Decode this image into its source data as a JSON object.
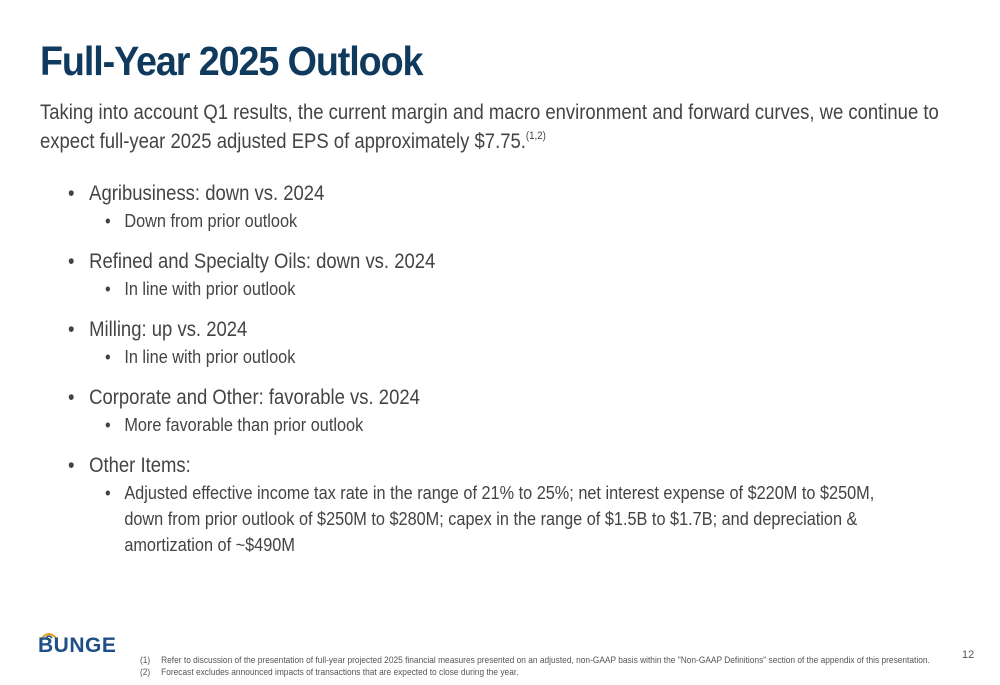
{
  "slide": {
    "title": "Full-Year 2025 Outlook",
    "subtitle": "Taking into account Q1 results, the current margin and macro environment and forward curves, we continue to expect full-year 2025 adjusted EPS of approximately $7.75.",
    "subtitle_sup": "(1,2)",
    "bullets": [
      {
        "text": "Agribusiness: down vs. 2024",
        "sub": "Down from prior outlook"
      },
      {
        "text": "Refined and Specialty Oils: down vs. 2024",
        "sub": "In line with prior outlook"
      },
      {
        "text": "Milling: up vs. 2024",
        "sub": "In line with prior outlook"
      },
      {
        "text": "Corporate and Other: favorable vs. 2024",
        "sub": "More favorable than prior outlook"
      },
      {
        "text": "Other Items:",
        "sub": "Adjusted effective income tax rate in the range of 21% to 25%; net interest expense of $220M to $250M, down from prior outlook of $250M to $280M; capex in the range of $1.5B to $1.7B; and depreciation & amortization of ~$490M"
      }
    ],
    "logo_text": "BUNGE",
    "footnotes": [
      {
        "num": "(1)",
        "text": "Refer to discussion of the presentation of full-year projected 2025 financial measures presented on an adjusted, non-GAAP basis within the \"Non-GAAP Definitions\" section of the appendix of this presentation."
      },
      {
        "num": "(2)",
        "text": "Forecast excludes announced impacts of transactions that are expected to close during the year."
      }
    ],
    "page_number": "12",
    "colors": {
      "title": "#0f3a5e",
      "body": "#444444",
      "logo": "#1e4f86"
    }
  }
}
